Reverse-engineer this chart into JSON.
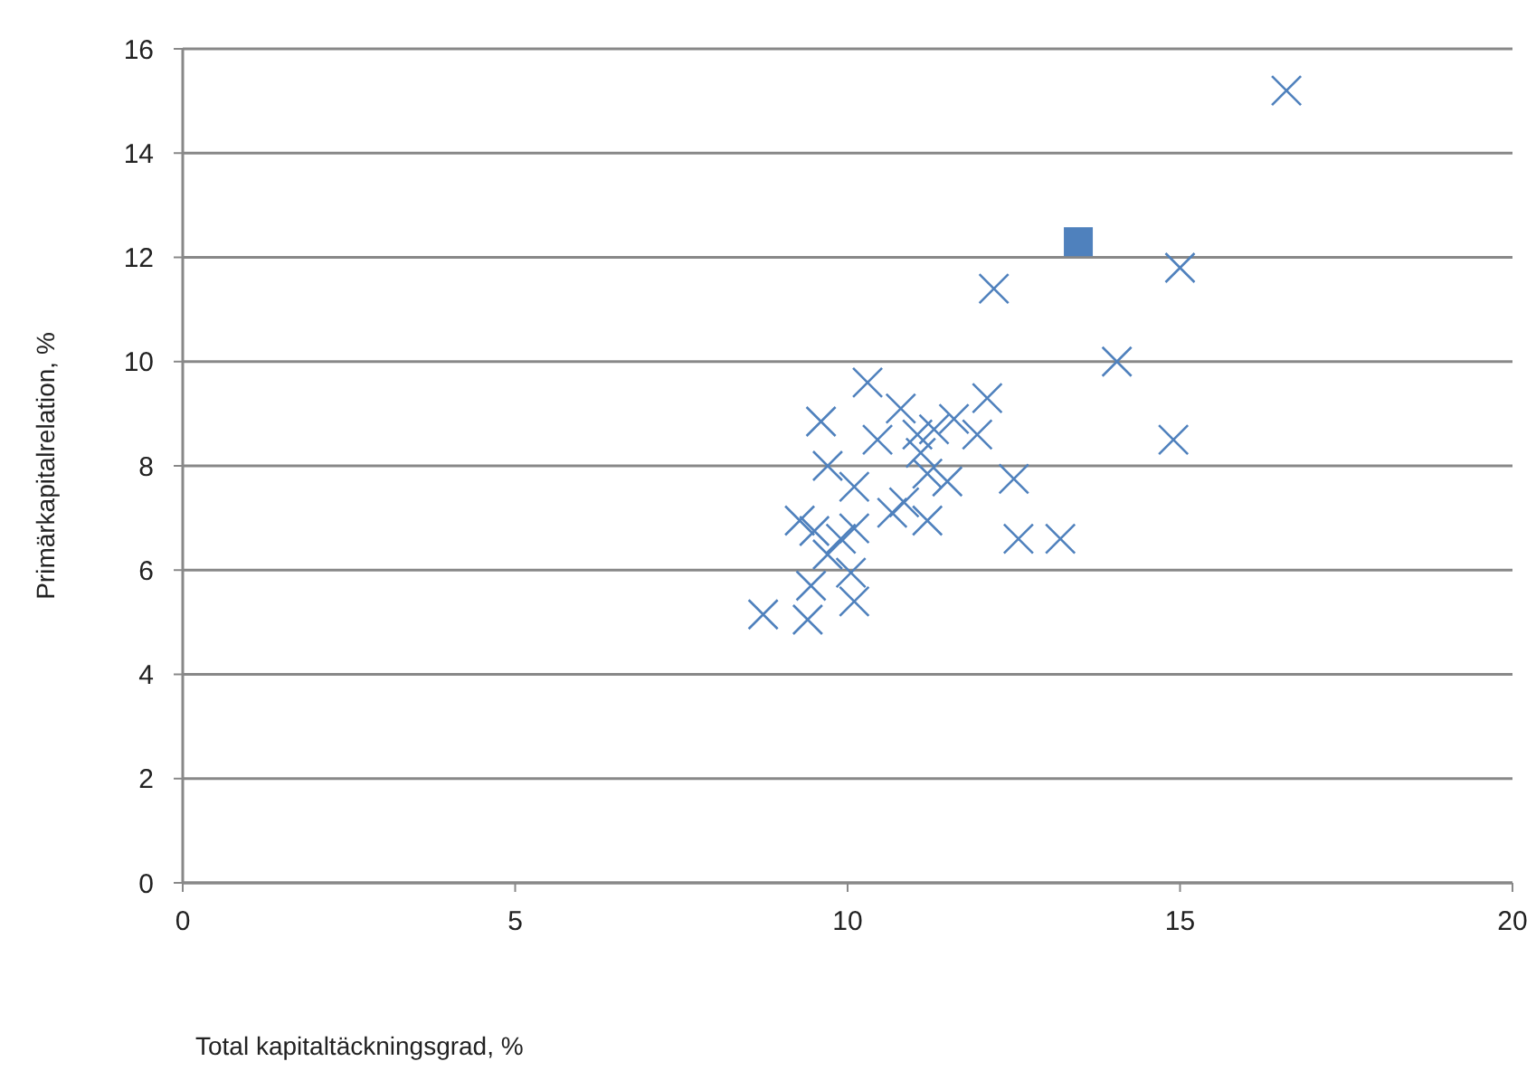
{
  "chart_data": {
    "type": "scatter",
    "xlabel": "Total kapitaltäckningsgrad, %",
    "ylabel": "Primärkapitalrelation, %",
    "xlim": [
      0,
      20
    ],
    "xticks": [
      0,
      5,
      10,
      15,
      20
    ],
    "ylim": [
      0,
      16
    ],
    "yticks": [
      0,
      2,
      4,
      6,
      8,
      10,
      12,
      14,
      16
    ],
    "grid": "y",
    "series": [
      {
        "color": "#4f81bd",
        "marker": "cross",
        "x": [
          16.6,
          12.2,
          15.0,
          14.05,
          14.9,
          10.3,
          9.6,
          12.1,
          10.8,
          9.7,
          10.1,
          10.45,
          11.05,
          11.3,
          11.6,
          11.95,
          11.1,
          11.2,
          11.5,
          10.85,
          10.67,
          11.2,
          12.5,
          12.57,
          13.2,
          9.28,
          9.5,
          10.1,
          9.9,
          9.7,
          10.05,
          9.45,
          10.1,
          8.73,
          9.4
        ],
        "values": [
          15.2,
          11.4,
          11.8,
          10.0,
          8.5,
          9.6,
          8.85,
          9.3,
          9.1,
          8.0,
          7.6,
          8.5,
          8.6,
          8.7,
          8.9,
          8.6,
          8.25,
          7.85,
          7.7,
          7.3,
          7.1,
          6.95,
          7.75,
          6.6,
          6.6,
          6.95,
          6.75,
          6.8,
          6.6,
          6.3,
          5.95,
          5.7,
          5.4,
          5.15,
          5.05
        ]
      },
      {
        "color": "#4f81bd",
        "marker": "square",
        "x": [
          13.47
        ],
        "values": [
          12.3
        ]
      }
    ]
  }
}
